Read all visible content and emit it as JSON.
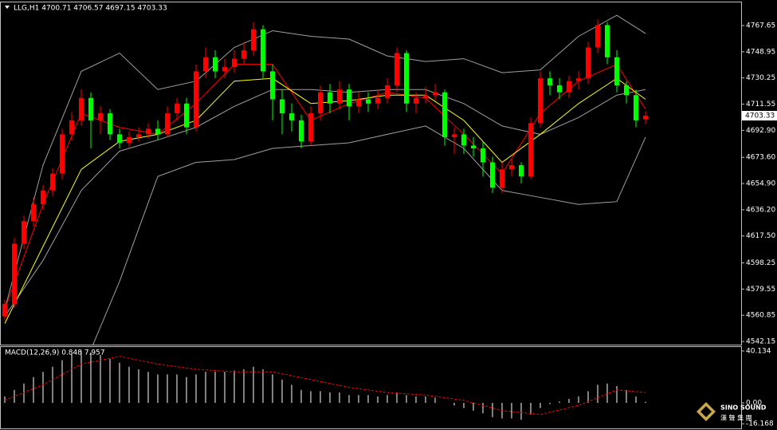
{
  "chart_data": [
    {
      "type": "candlestick",
      "title": "LLG,H1  4700.71 4706.57 4697.15 4703.33",
      "up_color": "#ff0000",
      "down_color": "#00ff00",
      "open": [
        4560,
        4569,
        4612,
        4628,
        4640,
        4650,
        4662,
        4690,
        4700,
        4716,
        4700,
        4705,
        4690,
        4684,
        4688,
        4690,
        4694,
        4690,
        4705,
        4712,
        4695,
        4735,
        4745,
        4735,
        4738,
        4744,
        4750,
        4765,
        4735,
        4715,
        4705,
        4700,
        4685,
        4705,
        4720,
        4712,
        4722,
        4710,
        4715,
        4712,
        4716,
        4725,
        4748,
        4712,
        4716,
        4718,
        4720,
        4688,
        4690,
        4682,
        4680,
        4670,
        4652,
        4665,
        4668,
        4660,
        4698,
        4730,
        4725,
        4720,
        4728,
        4730,
        4752,
        4768,
        4745,
        4725,
        4718,
        4700.71
      ],
      "high": [
        4572,
        4616,
        4632,
        4645,
        4654,
        4666,
        4694,
        4706,
        4722,
        4720,
        4710,
        4708,
        4694,
        4692,
        4695,
        4698,
        4700,
        4710,
        4716,
        4716,
        4740,
        4752,
        4750,
        4744,
        4750,
        4756,
        4770,
        4768,
        4740,
        4722,
        4712,
        4704,
        4710,
        4725,
        4726,
        4728,
        4726,
        4720,
        4720,
        4722,
        4730,
        4752,
        4750,
        4720,
        4724,
        4726,
        4722,
        4695,
        4694,
        4688,
        4685,
        4674,
        4670,
        4672,
        4670,
        4702,
        4735,
        4735,
        4730,
        4732,
        4735,
        4756,
        4772,
        4770,
        4750,
        4728,
        4722,
        4706.57
      ],
      "low": [
        4557,
        4566,
        4608,
        4624,
        4636,
        4646,
        4658,
        4686,
        4696,
        4680,
        4690,
        4686,
        4680,
        4681,
        4685,
        4687,
        4686,
        4688,
        4700,
        4690,
        4692,
        4730,
        4730,
        4730,
        4734,
        4740,
        4746,
        4730,
        4700,
        4690,
        4692,
        4680,
        4682,
        4700,
        4705,
        4708,
        4700,
        4705,
        4706,
        4708,
        4712,
        4720,
        4706,
        4705,
        4712,
        4714,
        4682,
        4676,
        4676,
        4674,
        4660,
        4648,
        4648,
        4660,
        4655,
        4658,
        4695,
        4718,
        4715,
        4716,
        4722,
        4726,
        4748,
        4740,
        4720,
        4712,
        4695,
        4697.15
      ],
      "close": [
        4569,
        4612,
        4628,
        4640,
        4650,
        4662,
        4690,
        4700,
        4716,
        4700,
        4705,
        4690,
        4684,
        4688,
        4690,
        4694,
        4690,
        4705,
        4712,
        4695,
        4735,
        4745,
        4735,
        4738,
        4744,
        4750,
        4765,
        4735,
        4715,
        4705,
        4700,
        4685,
        4705,
        4720,
        4712,
        4722,
        4710,
        4715,
        4712,
        4716,
        4725,
        4748,
        4712,
        4716,
        4718,
        4720,
        4688,
        4690,
        4682,
        4680,
        4670,
        4652,
        4665,
        4668,
        4660,
        4698,
        4730,
        4725,
        4720,
        4728,
        4730,
        4752,
        4768,
        4745,
        4725,
        4718,
        4700,
        4703.33
      ],
      "overlays": [
        {
          "color": "#a0a0a0",
          "x": [
            0,
            4,
            8,
            12,
            16,
            20,
            24,
            28,
            32,
            36,
            40,
            44,
            48,
            52,
            56,
            60,
            64,
            67
          ],
          "values": [
            4565,
            4668,
            4735,
            4748,
            4722,
            4728,
            4752,
            4764,
            4760,
            4758,
            4746,
            4742,
            4744,
            4734,
            4736,
            4760,
            4775,
            4762
          ]
        },
        {
          "color": "#a0a0a0",
          "x": [
            0,
            4,
            8,
            12,
            16,
            20,
            24,
            28,
            32,
            36,
            40,
            44,
            48,
            52,
            56,
            60,
            64,
            67
          ],
          "values": [
            4560,
            4600,
            4650,
            4678,
            4686,
            4695,
            4710,
            4722,
            4722,
            4720,
            4722,
            4722,
            4712,
            4696,
            4690,
            4702,
            4718,
            4722
          ]
        },
        {
          "color": "#a0a0a0",
          "x": [
            0,
            4,
            8,
            12,
            16,
            20,
            24,
            28,
            32,
            36,
            40,
            44,
            48,
            52,
            56,
            60,
            64,
            67
          ],
          "values": [
            null,
            null,
            4520,
            4585,
            4660,
            4670,
            4672,
            4680,
            4682,
            4684,
            4690,
            4696,
            4680,
            4650,
            4645,
            4640,
            4642,
            4688
          ]
        },
        {
          "color": "#ff0000",
          "x": [
            0,
            4,
            8,
            12,
            16,
            20,
            24,
            28,
            32,
            36,
            40,
            44,
            48,
            52,
            56,
            60,
            64,
            67
          ],
          "values": [
            4565,
            4640,
            4705,
            4695,
            4690,
            4712,
            4740,
            4740,
            4700,
            4712,
            4720,
            4716,
            4690,
            4662,
            4705,
            4728,
            4740,
            4708
          ]
        },
        {
          "color": "#ffff00",
          "x": [
            0,
            4,
            8,
            12,
            16,
            20,
            24,
            28,
            32,
            36,
            40,
            44,
            48,
            52,
            56,
            60,
            64,
            67
          ],
          "values": [
            4555,
            4610,
            4665,
            4685,
            4690,
            4700,
            4728,
            4730,
            4712,
            4714,
            4718,
            4718,
            4700,
            4670,
            4690,
            4712,
            4730,
            4715
          ]
        }
      ],
      "ylim": [
        4539.9,
        4784.2
      ],
      "yticks": [
        4767.65,
        {
          "value": 4748.95,
          "label": "4748.95"
        },
        4730.25,
        4711.55,
        {
          "value": 4692.9,
          "label": "4692.90"
        },
        {
          "value": 4673.6,
          "label": "4673.60"
        },
        {
          "value": 4654.9,
          "label": "4654.90"
        },
        {
          "value": 4636.2,
          "label": "4636.20"
        },
        {
          "value": 4617.5,
          "label": "4617.50"
        },
        4598.25,
        4579.55,
        4560.85,
        4542.15
      ]
    },
    {
      "type": "macd",
      "title": "MACD(12,26,9) 0.848 7.957",
      "color": "#ffffff",
      "values": [
        5,
        10,
        15,
        20,
        24,
        28,
        33,
        38,
        40,
        39,
        37,
        34,
        31,
        28,
        26,
        24,
        22,
        22,
        22,
        20,
        22,
        24,
        24,
        24,
        25,
        26,
        28,
        26,
        22,
        18,
        14,
        10,
        9,
        9,
        8,
        8,
        6,
        6,
        6,
        5,
        6,
        8,
        6,
        5,
        5,
        4,
        0,
        -2,
        -4,
        -6,
        -8,
        -11,
        -12,
        -12,
        -13,
        -9,
        -4,
        -1,
        1,
        3,
        5,
        9,
        14,
        15,
        13,
        10,
        5,
        0.848
      ],
      "signal": {
        "color": "#ff0000",
        "x": [
          0,
          4,
          8,
          12,
          16,
          20,
          24,
          28,
          32,
          36,
          40,
          44,
          48,
          52,
          56,
          60,
          64,
          67
        ],
        "values": [
          2,
          14,
          30,
          36,
          30,
          26,
          24,
          24,
          18,
          12,
          8,
          6,
          2,
          -6,
          -9,
          -2,
          10,
          7.957
        ]
      },
      "ylim": [
        -19.75,
        43.2
      ],
      "yticks": [
        40.134,
        {
          "value": 0,
          "label": "0.00"
        },
        -16.168
      ]
    }
  ],
  "watermark": {
    "brand": "SINO SOUND",
    "subtitle": "漢 聲 集 團"
  }
}
